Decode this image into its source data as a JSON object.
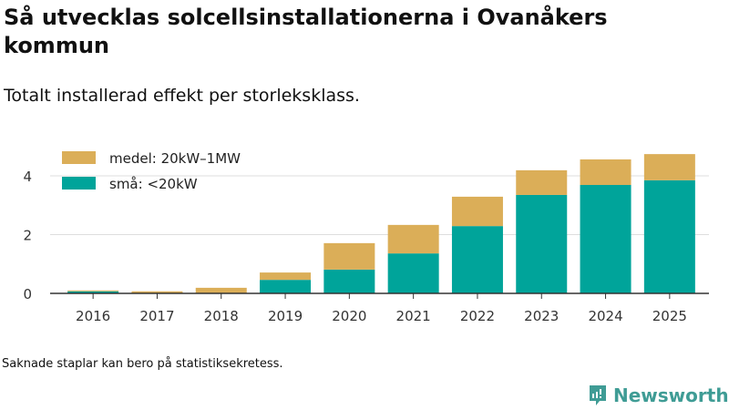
{
  "title": "Så utvecklas solcellsinstallationerna i Ovanåkers kommun",
  "subtitle": "Totalt installerad effekt per storleksklass.",
  "note": "Saknade staplar kan bero på statistiksekretess.",
  "logo_text": "Newsworthy",
  "chart_data": {
    "type": "bar",
    "stacked": true,
    "categories": [
      "2016",
      "2017",
      "2018",
      "2019",
      "2020",
      "2021",
      "2022",
      "2023",
      "2024",
      "2025"
    ],
    "series": [
      {
        "name": "små: <20kW",
        "color": "#00a49a",
        "values": [
          0.07,
          0.0,
          0.0,
          0.46,
          0.81,
          1.36,
          2.29,
          3.35,
          3.69,
          3.85
        ]
      },
      {
        "name": "medel: 20kW–1MW",
        "color": "#dbae58",
        "values": [
          0.03,
          0.07,
          0.19,
          0.25,
          0.9,
          0.97,
          1.0,
          0.84,
          0.87,
          0.89
        ]
      }
    ],
    "yticks": [
      0,
      2,
      4
    ],
    "ylim": [
      0,
      4.9
    ],
    "grid": true,
    "legend": "top-left"
  }
}
